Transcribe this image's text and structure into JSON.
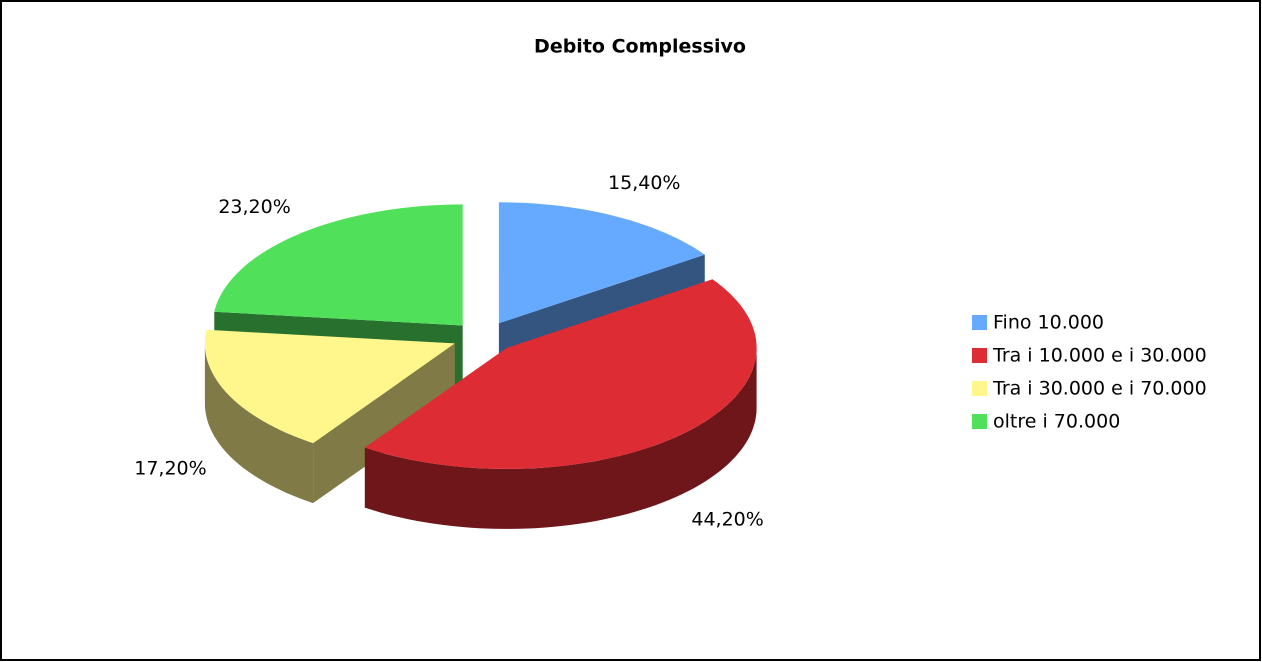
{
  "chart_data": {
    "type": "pie3d",
    "title": "Debito Complessivo",
    "categories": [
      "Fino 10.000",
      "Tra i 10.000 e i 30.000",
      "Tra i 30.000 e i 70.000",
      "oltre i 70.000"
    ],
    "values": [
      15.4,
      44.2,
      17.2,
      23.2
    ],
    "value_labels": [
      "15,40%",
      "44,20%",
      "17,20%",
      "23,20%"
    ],
    "colors": [
      "#66aaff",
      "#dd2c33",
      "#fff68c",
      "#50e05a"
    ],
    "legend": "right"
  }
}
